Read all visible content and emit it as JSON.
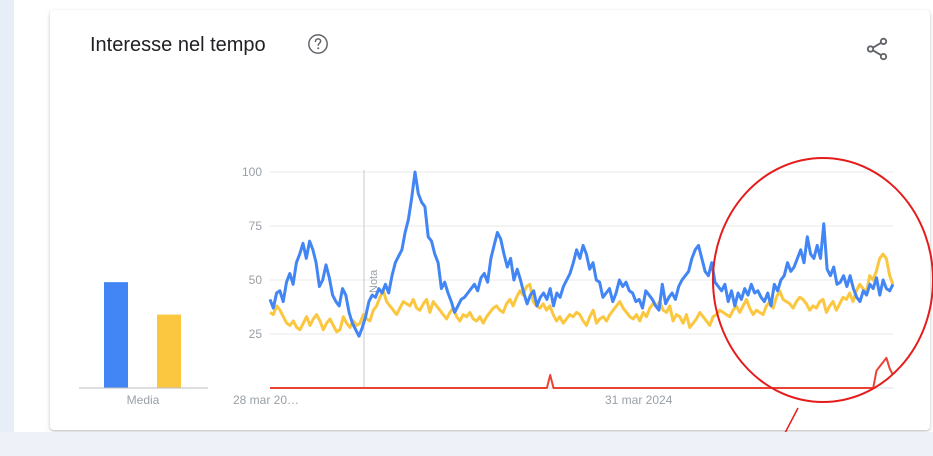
{
  "card": {
    "title": "Interesse nel tempo",
    "help_icon": "help-circle-icon",
    "share_icon": "share-icon"
  },
  "colors": {
    "series1": "#4285f4",
    "series2": "#fbc740",
    "series3": "#ea4335",
    "annotation": "#e51c1c",
    "grid": "#e8e8e8",
    "axis_text": "#9aa0a6"
  },
  "chart_data": [
    {
      "type": "bar",
      "categories": [
        "Media"
      ],
      "series": [
        {
          "values": [
            49
          ]
        },
        {
          "values": [
            34
          ]
        }
      ],
      "ylim": [
        0,
        100
      ]
    },
    {
      "type": "line",
      "x_labels": [
        "28 mar 20…",
        "31 mar 2024"
      ],
      "yticks": [
        25,
        50,
        75,
        100
      ],
      "ylim": [
        0,
        100
      ],
      "annotation_label": "Nota",
      "series": [
        {
          "values": [
            41,
            37,
            44,
            45,
            40,
            49,
            53,
            48,
            58,
            62,
            67,
            60,
            68,
            64,
            58,
            47,
            50,
            57,
            51,
            43,
            40,
            38,
            46,
            43,
            35,
            30,
            27,
            24,
            28,
            33,
            40,
            43,
            42,
            46,
            44,
            48,
            44,
            52,
            58,
            61,
            64,
            72,
            78,
            88,
            100,
            90,
            86,
            84,
            70,
            68,
            62,
            58,
            46,
            49,
            44,
            40,
            35,
            38,
            41,
            42,
            44,
            46,
            48,
            45,
            51,
            53,
            49,
            60,
            66,
            72,
            69,
            62,
            56,
            60,
            50,
            55,
            50,
            44,
            39,
            43,
            45,
            38,
            42,
            44,
            41,
            46,
            38,
            44,
            42,
            47,
            50,
            53,
            58,
            64,
            60,
            66,
            62,
            55,
            58,
            50,
            49,
            42,
            44,
            46,
            40,
            44,
            50,
            47,
            49,
            45,
            44,
            40,
            41,
            37,
            45,
            43,
            41,
            38,
            36,
            48,
            39,
            42,
            44,
            41,
            47,
            50,
            52,
            54,
            60,
            64,
            66,
            60,
            54,
            52,
            58,
            49,
            47,
            45,
            48,
            40,
            45,
            38,
            44,
            41,
            46,
            43,
            48,
            44,
            45,
            42,
            40,
            44,
            38,
            48,
            45,
            50,
            52,
            58,
            54,
            56,
            60,
            64,
            58,
            70,
            62,
            60,
            66,
            60,
            76,
            55,
            52,
            56,
            48,
            49,
            52,
            47,
            52,
            46,
            42,
            40,
            45,
            43,
            48,
            46,
            51,
            43,
            50,
            46,
            45,
            48
          ]
        },
        {
          "values": [
            35,
            34,
            38,
            36,
            33,
            30,
            29,
            31,
            28,
            27,
            30,
            33,
            29,
            32,
            34,
            31,
            27,
            30,
            32,
            29,
            26,
            27,
            33,
            30,
            28,
            31,
            29,
            30,
            34,
            32,
            31,
            36,
            38,
            42,
            45,
            40,
            38,
            36,
            34,
            37,
            40,
            39,
            38,
            41,
            37,
            36,
            39,
            41,
            35,
            40,
            38,
            36,
            34,
            32,
            35,
            37,
            33,
            31,
            34,
            33,
            35,
            32,
            31,
            33,
            30,
            33,
            35,
            37,
            38,
            36,
            35,
            39,
            41,
            38,
            42,
            45,
            43,
            47,
            48,
            40,
            38,
            37,
            39,
            36,
            38,
            34,
            31,
            33,
            30,
            32,
            34,
            33,
            35,
            34,
            31,
            29,
            33,
            36,
            30,
            32,
            33,
            31,
            34,
            36,
            38,
            40,
            37,
            35,
            33,
            32,
            34,
            31,
            35,
            33,
            37,
            39,
            38,
            40,
            36,
            35,
            38,
            31,
            34,
            33,
            30,
            34,
            28,
            30,
            32,
            35,
            33,
            31,
            29,
            33,
            34,
            36,
            35,
            34,
            33,
            36,
            38,
            35,
            38,
            41,
            37,
            34,
            36,
            35,
            34,
            38,
            40,
            37,
            42,
            45,
            41,
            40,
            39,
            37,
            40,
            42,
            41,
            39,
            36,
            38,
            37,
            40,
            41,
            35,
            38,
            40,
            36,
            39,
            42,
            41,
            44,
            40,
            45,
            48,
            46,
            44,
            52,
            50,
            54,
            60,
            62,
            60,
            52,
            48
          ]
        },
        {
          "values": [
            0,
            0,
            0,
            0,
            0,
            0,
            0,
            0,
            0,
            0,
            0,
            0,
            0,
            0,
            0,
            0,
            0,
            0,
            0,
            0,
            0,
            0,
            0,
            0,
            0,
            0,
            0,
            0,
            0,
            0,
            0,
            0,
            0,
            0,
            0,
            0,
            0,
            0,
            0,
            0,
            0,
            0,
            0,
            0,
            0,
            0,
            0,
            0,
            0,
            0,
            0,
            0,
            0,
            0,
            0,
            0,
            0,
            0,
            0,
            0,
            0,
            0,
            0,
            0,
            0,
            0,
            0,
            0,
            0,
            0,
            0,
            0,
            0,
            0,
            0,
            0,
            0,
            0,
            0,
            0,
            0,
            0,
            0,
            0,
            0,
            6,
            0,
            0,
            0,
            0,
            0,
            0,
            0,
            0,
            0,
            0,
            0,
            0,
            0,
            0,
            0,
            0,
            0,
            0,
            0,
            0,
            0,
            0,
            0,
            0,
            0,
            0,
            0,
            0,
            0,
            0,
            0,
            0,
            0,
            0,
            0,
            0,
            0,
            0,
            0,
            0,
            0,
            0,
            0,
            0,
            0,
            0,
            0,
            0,
            0,
            0,
            0,
            0,
            0,
            0,
            0,
            0,
            0,
            0,
            0,
            0,
            0,
            0,
            0,
            0,
            0,
            0,
            0,
            0,
            0,
            0,
            0,
            0,
            0,
            0,
            0,
            0,
            0,
            0,
            0,
            0,
            0,
            0,
            0,
            0,
            0,
            0,
            0,
            0,
            0,
            0,
            0,
            0,
            0,
            0,
            0,
            0,
            0,
            0,
            8,
            10,
            12,
            14,
            9,
            6
          ]
        }
      ]
    }
  ]
}
